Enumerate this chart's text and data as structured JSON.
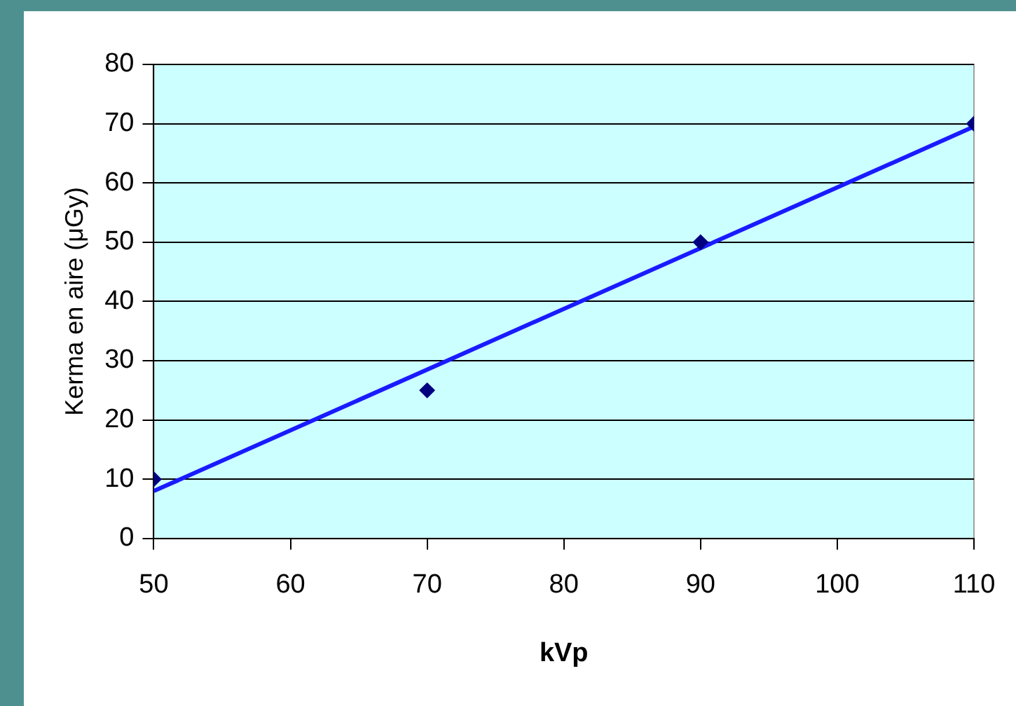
{
  "chart_data": {
    "type": "scatter",
    "xlabel": "kVp",
    "ylabel": "Kerma en aire (μGy)",
    "xlim": [
      50,
      110
    ],
    "xticks": [
      50,
      60,
      70,
      80,
      90,
      100,
      110
    ],
    "ylim": [
      0,
      80
    ],
    "yticks": [
      0,
      10,
      20,
      30,
      40,
      50,
      60,
      70,
      80
    ],
    "grid": "y",
    "legend": false,
    "marker": "diamond",
    "series": [
      {
        "color": "#000080",
        "x": [
          50,
          70,
          90,
          110
        ],
        "values": [
          10,
          25,
          50,
          70
        ]
      },
      {
        "type": "line",
        "color": "#1a1aff",
        "x": [
          50,
          110
        ],
        "values": [
          8,
          69.5
        ],
        "marker": "none",
        "line_style": "solid"
      }
    ]
  }
}
